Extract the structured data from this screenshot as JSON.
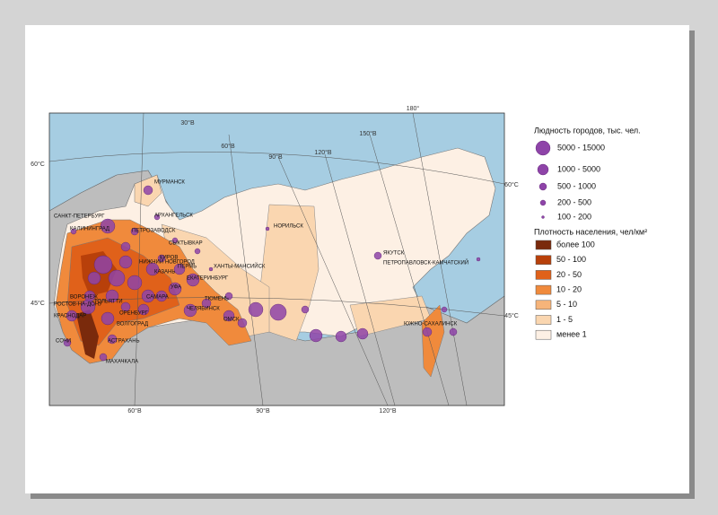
{
  "map": {
    "graticule_labels": [
      "30°В",
      "60°В",
      "90°В",
      "120°В",
      "150°В",
      "180°",
      "60°С",
      "45°С",
      "60°С",
      "45°С",
      "60°В",
      "90°В",
      "120°В"
    ],
    "cities": [
      "МУРМАНСК",
      "АРХАНГЕЛЬСК",
      "САНКТ-ПЕТЕРБУРГ",
      "ПЕТРОЗАВОДСК",
      "КАЛИНИНГРАД",
      "СЫКТЫВКАР",
      "КИРОВ",
      "НИЖНИЙ НОВГОРОД",
      "ПЕРМЬ",
      "КАЗАНЬ",
      "ЕКАТЕРИНБУРГ",
      "ХАНТЫ-МАНСИЙСК",
      "НОРИЛЬСК",
      "УФА",
      "САМАРА",
      "ТЮМЕНЬ",
      "ЧЕЛЯБИНСК",
      "ВОРОНЕЖ",
      "ТОЛЬЯТТИ",
      "РОСТОВ-НА-ДОНУ",
      "ОРЕНБУРГ",
      "ОМСК",
      "КРАСНОДАР",
      "ВОЛГОГРАД",
      "СОЧИ",
      "АСТРАХАНЬ",
      "МАХАЧКАЛА",
      "ЯКУТСК",
      "ПЕТРОПАВЛОВСК-КАМЧАТСКИЙ",
      "ЮЖНО-САХАЛИНСК"
    ]
  },
  "legend": {
    "population": {
      "title": "Людность городов, тыс. чел.",
      "color": "#8e44a8",
      "items": [
        "5000 - 15000",
        "1000 - 5000",
        "500 - 1000",
        "200 - 500",
        "100 - 200"
      ]
    },
    "density": {
      "title": "Плотность населения, чел/км²",
      "items": [
        {
          "label": "более 100",
          "color": "#7a2a0c"
        },
        {
          "label": "50 - 100",
          "color": "#b8400a"
        },
        {
          "label": "20 - 50",
          "color": "#e0611a"
        },
        {
          "label": "10 - 20",
          "color": "#f08a3c"
        },
        {
          "label": "5 - 10",
          "color": "#f6b47a"
        },
        {
          "label": "1 - 5",
          "color": "#fad6b0"
        },
        {
          "label": "менее 1",
          "color": "#fdf0e4"
        }
      ]
    }
  }
}
